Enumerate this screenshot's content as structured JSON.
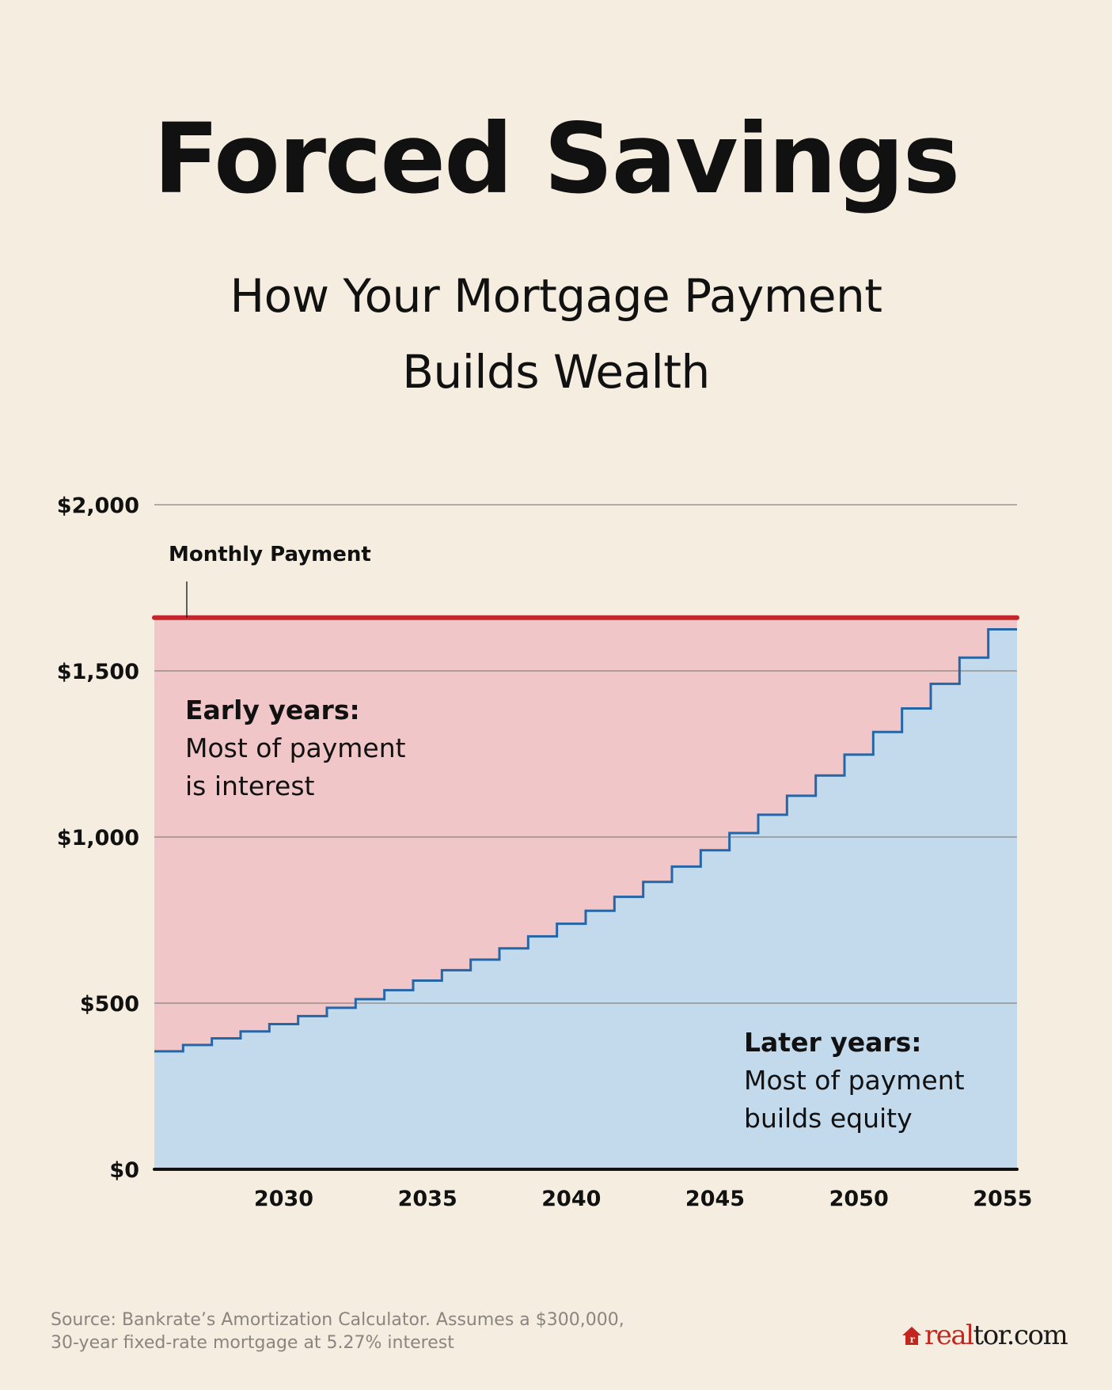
{
  "header": {
    "title": "Forced Savings",
    "subtitle_line1": "How Your Mortgage Payment",
    "subtitle_line2": "Builds Wealth"
  },
  "annotations": {
    "monthly_payment_label": "Monthly Payment",
    "early": {
      "head": "Early years:",
      "line1": "Most of payment",
      "line2": "is interest"
    },
    "later": {
      "head": "Later years:",
      "line1": "Most of payment",
      "line2": "builds equity"
    }
  },
  "footer": {
    "source_line1": "Source: Bankrate’s Amortization Calculator. Assumes a $300,000,",
    "source_line2": "30-year fixed-rate mortgage at 5.27% interest",
    "logo_red": "real",
    "logo_dark": "tor.com"
  },
  "colors": {
    "background": "#f4ede0",
    "interest_fill": "#f0c6c8",
    "principal_fill": "#c3daed",
    "principal_line": "#2566a8",
    "payment_line": "#c4262c",
    "gridline": "#8a8580",
    "axis": "#111111"
  },
  "chart_data": {
    "type": "area",
    "title": "Forced Savings",
    "subtitle": "How Your Mortgage Payment Builds Wealth",
    "xlabel": "",
    "ylabel": "",
    "ylim": [
      0,
      2000
    ],
    "xlim": [
      2026,
      2056
    ],
    "grid": true,
    "y_ticks": [
      0,
      500,
      1000,
      1500,
      2000
    ],
    "y_tick_labels": [
      "$0",
      "$500",
      "$1,000",
      "$1,500",
      "$2,000"
    ],
    "x_ticks": [
      2030,
      2035,
      2040,
      2045,
      2050,
      2055
    ],
    "x_tick_labels": [
      "2030",
      "2035",
      "2040",
      "2045",
      "2050",
      "2055"
    ],
    "step": "post",
    "x": [
      2026,
      2027,
      2028,
      2029,
      2030,
      2031,
      2032,
      2033,
      2034,
      2035,
      2036,
      2037,
      2038,
      2039,
      2040,
      2041,
      2042,
      2043,
      2044,
      2045,
      2046,
      2047,
      2048,
      2049,
      2050,
      2051,
      2052,
      2053,
      2054,
      2055
    ],
    "series": [
      {
        "name": "Monthly Payment",
        "type": "line",
        "values": [
          1660,
          1660,
          1660,
          1660,
          1660,
          1660,
          1660,
          1660,
          1660,
          1660,
          1660,
          1660,
          1660,
          1660,
          1660,
          1660,
          1660,
          1660,
          1660,
          1660,
          1660,
          1660,
          1660,
          1660,
          1660,
          1660,
          1660,
          1660,
          1660,
          1660
        ]
      },
      {
        "name": "Principal (equity)",
        "type": "step-area",
        "values": [
          355,
          374,
          394,
          415,
          437,
          461,
          486,
          512,
          539,
          568,
          599,
          631,
          665,
          701,
          739,
          778,
          820,
          865,
          911,
          960,
          1012,
          1067,
          1124,
          1185,
          1248,
          1316,
          1387,
          1461,
          1540,
          1625
        ]
      },
      {
        "name": "Interest",
        "type": "area-between",
        "values": [
          1305,
          1286,
          1266,
          1245,
          1223,
          1199,
          1174,
          1148,
          1121,
          1092,
          1061,
          1029,
          995,
          959,
          921,
          882,
          840,
          795,
          749,
          700,
          648,
          593,
          536,
          475,
          412,
          344,
          273,
          199,
          120,
          35
        ]
      }
    ],
    "annotations": [
      {
        "text": "Monthly Payment",
        "at": [
          2027,
          1660
        ]
      },
      {
        "text": "Early years: Most of payment is interest",
        "region": "interest"
      },
      {
        "text": "Later years: Most of payment builds equity",
        "region": "principal"
      }
    ]
  }
}
